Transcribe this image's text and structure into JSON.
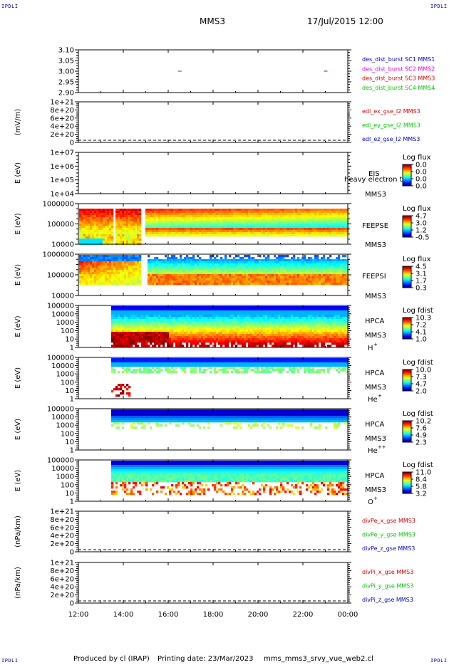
{
  "corner_label": "IPDLI",
  "header": {
    "title": "MMS3",
    "datetime": "17/Jul/2015 12:00"
  },
  "footer": {
    "produced_by": "Produced by cl (IRAP)",
    "printing_date": "Printing date: 23/Mar/2023",
    "script_name": "mms_mms3_srvy_vue_web2.cl"
  },
  "time_axis": {
    "ticks": [
      "12:00",
      "14:00",
      "16:00",
      "18:00",
      "20:00",
      "22:00",
      "00:00"
    ]
  },
  "colors": {
    "red": "#e00000",
    "magenta": "#e000e0",
    "green": "#00cc00",
    "blue": "#0000cc"
  },
  "chart_data": [
    {
      "type": "line",
      "ylabel": "",
      "yticks": [
        "3.10",
        "3.05",
        "3.00",
        "2.95",
        "2.90"
      ],
      "legend": [
        {
          "text": "des_dist_burst SC1 MMS1",
          "color": "#0000cc"
        },
        {
          "text": "des_dist_burst SC2 MMS2",
          "color": "#e000e0"
        },
        {
          "text": "des_dist_burst SC3 MMS3",
          "color": "#e00000"
        },
        {
          "text": "des_dist_burst SC4 MMS4",
          "color": "#00cc00"
        }
      ],
      "series": [
        {
          "name": "des_dist_burst SC3 MMS3",
          "values": [
            {
              "x": "16:30",
              "y": 3.0
            },
            {
              "x": "23:00",
              "y": 3.0
            }
          ]
        }
      ]
    },
    {
      "type": "line",
      "ylabel": "(mV/m)",
      "yticks": [
        "1e+21",
        "8e+20",
        "6e+20",
        "4e+20",
        "2e+20",
        "0"
      ],
      "legend": [
        {
          "text": "edl_ex_gse_l2 MMS3",
          "color": "#e00000"
        },
        {
          "text": "edl_ey_gse_l2 MMS3",
          "color": "#00cc00"
        },
        {
          "text": "edl_ez_gse_l2 MMS3",
          "color": "#0000cc"
        }
      ]
    },
    {
      "type": "heatmap",
      "ylabel": "E (eV)",
      "yticks": [
        "1e+07",
        "1e+06",
        "1e+05",
        "1e+04"
      ],
      "labels": [
        "EIS",
        "MMS3"
      ],
      "overlay": "heavy electron to",
      "colorbar": {
        "title": "Log flux",
        "ticks": [
          "0.0",
          "0.0",
          "0.0",
          "0.0"
        ]
      }
    },
    {
      "type": "heatmap",
      "ylabel": "E (eV)",
      "yticks": [
        "1000000",
        "100000",
        "10000"
      ],
      "labels": [
        "FEEPSE",
        "MMS3"
      ],
      "colorbar": {
        "title": "Log flux",
        "ticks": [
          "4.7",
          "3.0",
          "1.2",
          "-0.5"
        ]
      }
    },
    {
      "type": "heatmap",
      "ylabel": "E (eV)",
      "yticks": [
        "1000000",
        "100000",
        "10000"
      ],
      "labels": [
        "FEEPSI",
        "MMS3"
      ],
      "colorbar": {
        "title": "Log flux",
        "ticks": [
          "4.5",
          "3.1",
          "1.7",
          "0.3"
        ]
      }
    },
    {
      "type": "heatmap",
      "ylabel": "E (eV)",
      "yticks": [
        "100000",
        "10000",
        "1000",
        "100",
        "10",
        "1"
      ],
      "labels": [
        "HPCA",
        "MMS3",
        "H",
        "+"
      ],
      "colorbar": {
        "title": "Log fdist",
        "ticks": [
          "10.3",
          "7.2",
          "4.1",
          "1.0"
        ]
      }
    },
    {
      "type": "heatmap",
      "ylabel": "E (eV)",
      "yticks": [
        "100000",
        "10000",
        "1000",
        "100",
        "10",
        "1"
      ],
      "labels": [
        "HPCA",
        "MMS3",
        "He",
        "+"
      ],
      "colorbar": {
        "title": "Log fdist",
        "ticks": [
          "10.0",
          "7.3",
          "4.7",
          "2.0"
        ]
      }
    },
    {
      "type": "heatmap",
      "ylabel": "E (eV)",
      "yticks": [
        "100000",
        "10000",
        "1000",
        "100",
        "10",
        "1"
      ],
      "labels": [
        "HPCA",
        "MMS3",
        "He",
        "++"
      ],
      "colorbar": {
        "title": "Log fdist",
        "ticks": [
          "10.2",
          "7.6",
          "4.9",
          "2.3"
        ]
      }
    },
    {
      "type": "heatmap",
      "ylabel": "E (eV)",
      "yticks": [
        "100000",
        "10000",
        "1000",
        "100",
        "10",
        "1"
      ],
      "labels": [
        "HPCA",
        "MMS3",
        "O",
        "+"
      ],
      "colorbar": {
        "title": "Log fdist",
        "ticks": [
          "11.0",
          "8.4",
          "5.8",
          "3.2"
        ]
      }
    },
    {
      "type": "line",
      "ylabel": "(nPa/km)",
      "yticks": [
        "1e+21",
        "8e+20",
        "6e+20",
        "4e+20",
        "2e+20",
        "0"
      ],
      "legend": [
        {
          "text": "divPe_x_gse MMS3",
          "color": "#e00000"
        },
        {
          "text": "divPe_y_gse MMS3",
          "color": "#00cc00"
        },
        {
          "text": "divPe_z_gse MMS3",
          "color": "#0000cc"
        }
      ]
    },
    {
      "type": "line",
      "ylabel": "(nPa/km)",
      "yticks": [
        "1e+21",
        "8e+20",
        "6e+20",
        "4e+20",
        "2e+20",
        "0"
      ],
      "legend": [
        {
          "text": "divPi_x_gse MMS3",
          "color": "#e00000"
        },
        {
          "text": "divPi_y_gse MMS3",
          "color": "#00cc00"
        },
        {
          "text": "divPi_z_gse MMS3",
          "color": "#0000cc"
        }
      ]
    }
  ]
}
